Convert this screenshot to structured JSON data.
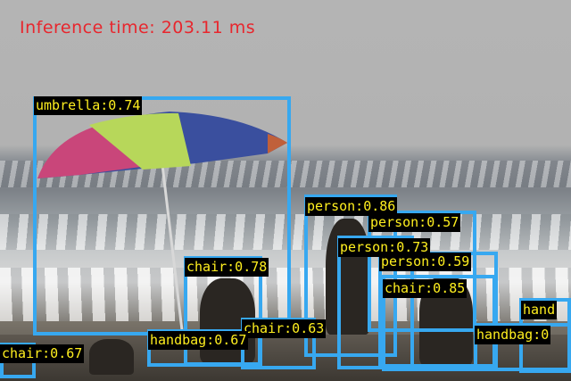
{
  "overlay": {
    "inference_text": "Inference time: 203.11 ms"
  },
  "detections": [
    {
      "label": "umbrella:0.74",
      "class": "umbrella"
    },
    {
      "label": "person:0.86",
      "class": "person"
    },
    {
      "label": "person:0.57",
      "class": "person"
    },
    {
      "label": "person:0.73",
      "class": "person"
    },
    {
      "label": "person:0.59",
      "class": "person"
    },
    {
      "label": "chair:0.85",
      "class": "chair"
    },
    {
      "label": "chair:0.78",
      "class": "chair"
    },
    {
      "label": "chair:0.63",
      "class": "chair"
    },
    {
      "label": "chair:0.67",
      "class": "chair"
    },
    {
      "label": "handbag:0.67",
      "class": "handbag"
    },
    {
      "label": "handbag:0",
      "class": "handbag"
    },
    {
      "label": "hand",
      "class": "handbag"
    }
  ],
  "colors": {
    "box": "#37a8f0",
    "label_text": "#ffef1f",
    "label_bg": "#000000",
    "inference_text": "#e8262d"
  }
}
